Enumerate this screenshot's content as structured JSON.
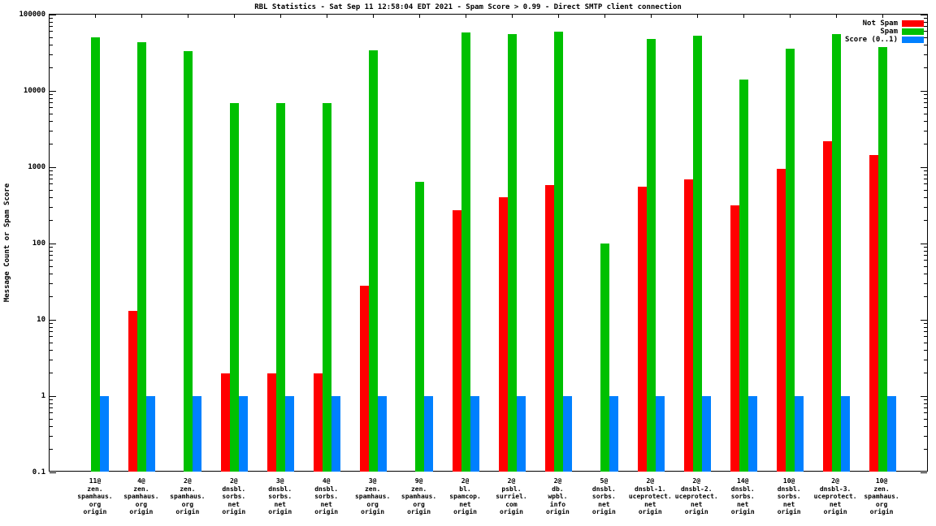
{
  "title": "RBL Statistics - Sat Sep 11 12:58:04 EDT 2021 - Spam Score > 0.99 - Direct SMTP client connection",
  "ylabel": "Message Count or Spam Score",
  "chart_data": {
    "type": "bar",
    "title": "RBL Statistics - Sat Sep 11 12:58:04 EDT 2021 - Spam Score > 0.99 - Direct SMTP client connection",
    "xlabel": "",
    "ylabel": "Message Count or Spam Score",
    "yscale": "log",
    "ylim": [
      0.1,
      100000
    ],
    "yticks": [
      "0.1",
      "1",
      "10",
      "100",
      "1000",
      "10000",
      "100000"
    ],
    "grid": false,
    "legend_position": "top-right",
    "categories": [
      [
        "11@",
        "zen.",
        "spamhaus.",
        "org",
        "origin"
      ],
      [
        "4@",
        "zen.",
        "spamhaus.",
        "org",
        "origin"
      ],
      [
        "2@",
        "zen.",
        "spamhaus.",
        "org",
        "origin"
      ],
      [
        "2@",
        "dnsbl.",
        "sorbs.",
        "net",
        "origin"
      ],
      [
        "3@",
        "dnsbl.",
        "sorbs.",
        "net",
        "origin"
      ],
      [
        "4@",
        "dnsbl.",
        "sorbs.",
        "net",
        "origin"
      ],
      [
        "3@",
        "zen.",
        "spamhaus.",
        "org",
        "origin"
      ],
      [
        "9@",
        "zen.",
        "spamhaus.",
        "org",
        "origin"
      ],
      [
        "2@",
        "bl.",
        "spamcop.",
        "net",
        "origin"
      ],
      [
        "2@",
        "psbl.",
        "surriel.",
        "com",
        "origin"
      ],
      [
        "2@",
        "db.",
        "wpbl.",
        "info",
        "origin"
      ],
      [
        "5@",
        "dnsbl.",
        "sorbs.",
        "net",
        "origin"
      ],
      [
        "2@",
        "dnsbl-1.",
        "uceprotect.",
        "net",
        "origin"
      ],
      [
        "2@",
        "dnsbl-2.",
        "uceprotect.",
        "net",
        "origin"
      ],
      [
        "14@",
        "dnsbl.",
        "sorbs.",
        "net",
        "origin"
      ],
      [
        "10@",
        "dnsbl.",
        "sorbs.",
        "net",
        "origin"
      ],
      [
        "2@",
        "dnsbl-3.",
        "uceprotect.",
        "net",
        "origin"
      ],
      [
        "10@",
        "zen.",
        "spamhaus.",
        "org",
        "origin"
      ]
    ],
    "series": [
      {
        "name": "Not Spam",
        "key": "not-spam",
        "color": "#ff0000",
        "values": [
          0,
          13,
          0,
          2,
          2,
          2,
          28,
          0,
          270,
          400,
          580,
          0,
          560,
          700,
          320,
          950,
          2200,
          1450
        ]
      },
      {
        "name": "Spam",
        "key": "spam",
        "color": "#00c000",
        "values": [
          50000,
          44000,
          33000,
          7000,
          7000,
          7000,
          34000,
          650,
          58000,
          55000,
          60000,
          100,
          48000,
          53000,
          14000,
          36000,
          55000,
          38000
        ]
      },
      {
        "name": "Score (0..1)",
        "key": "score",
        "color": "#0080ff",
        "values": [
          1,
          1,
          1,
          1,
          1,
          1,
          1,
          1,
          1,
          1,
          1,
          1,
          1,
          1,
          1,
          1,
          1,
          1
        ]
      }
    ]
  }
}
